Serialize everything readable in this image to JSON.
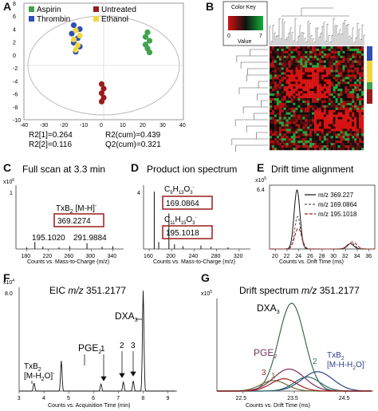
{
  "panels": {
    "A": {
      "label": "A",
      "legend": [
        {
          "name": "Aspirin",
          "color": "#3fa34d"
        },
        {
          "name": "Untreated",
          "color": "#9b1c1c"
        },
        {
          "name": "Thrombin",
          "color": "#2f4fb5"
        },
        {
          "name": "Ethanol",
          "color": "#f2d640"
        }
      ],
      "x_ticks": [
        "-40",
        "-30",
        "-20",
        "-10",
        "0",
        "10",
        "20",
        "30",
        "40"
      ],
      "y_ticks": [
        "8",
        "6",
        "4",
        "2",
        "0",
        "-2",
        "-4",
        "-6",
        "-8",
        "-10"
      ],
      "stats": [
        "R2[1]=0.264",
        "R2(cum)=0.439",
        "R2[2]=0.116",
        "Q2(cum)=0.321"
      ]
    },
    "B": {
      "label": "B",
      "key_title": "Color Key",
      "key_min": "0",
      "key_max": "7",
      "key_value": "Value"
    },
    "C": {
      "label": "C",
      "title": "Full scan at 3.3 min",
      "y_exp": "x10",
      "y_exp_sup": "6",
      "y_tick": "1",
      "peak_label": "TxB",
      "peak_label_sub": "2",
      "peak_label_suffix": " [M-H]",
      "peak_label_sup": "-",
      "boxed_value": "369.2274",
      "peaks": [
        "195.1020",
        "291.9884"
      ],
      "x_ticks": [
        "180",
        "220",
        "260",
        "300",
        "340"
      ],
      "xlabel": "Counts vs. Mass-to-Charge (m/z)"
    },
    "D": {
      "label": "D",
      "title": "Product ion spectrum",
      "y_tick": "4",
      "ion1": "C",
      "ion1_sub1": "9",
      "ion1_mid": "H",
      "ion1_sub2": "13",
      "ion1_end": "O",
      "ion1_sub3": "3",
      "ion1_sup": "-",
      "boxed1": "169.0864",
      "ion2": "C",
      "ion2_sub1": "11",
      "ion2_mid": "H",
      "ion2_sub2": "15",
      "ion2_end": "O",
      "ion2_sub3": "3",
      "ion2_sup": "-",
      "boxed2": "195.1018",
      "x_ticks": [
        "160",
        "200",
        "240",
        "280",
        "320"
      ],
      "xlabel": "Counts vs. Mass-to-Charge (m/z)"
    },
    "E": {
      "label": "E",
      "title": "Drift time alignment",
      "y_exp": "x10",
      "y_exp_sup": "5",
      "y_tick": "6.4",
      "legend": [
        {
          "name": "m/z  369.227",
          "color": "#111111",
          "dash": ""
        },
        {
          "name": "m/z  169.0864",
          "color": "#555555",
          "dash": "3,2"
        },
        {
          "name": "m/z  195.1018",
          "color": "#9b1c1c",
          "dash": "4,2"
        }
      ],
      "x_ticks": [
        "20",
        "22",
        "24",
        "26",
        "28",
        "30",
        "32",
        "34",
        "36"
      ],
      "xlabel": "Counts vs. Drift Time (ms)"
    },
    "F": {
      "label": "F",
      "title_prefix": "EIC ",
      "title_mz": "m/z",
      "title_value": " 351.2177",
      "y_exp": "x10",
      "y_exp_sup": "4",
      "y_tick": "8.0",
      "dxa": "DXA",
      "dxa_sub": "3",
      "pge": "PGE",
      "pge_sub": "2",
      "txb_line1": "TxB",
      "txb_sub": "2",
      "txb_line2": "[M-H",
      "txb_line2_sub": "2",
      "txb_line2_end": "O]",
      "txb_line2_sup": "-",
      "peak_nums": [
        "1",
        "2",
        "3"
      ],
      "x_ticks": [
        "3",
        "4",
        "5",
        "6",
        "7",
        "8",
        "9"
      ],
      "xlabel": "Counts vs. Acquisition Time (min)"
    },
    "G": {
      "label": "G",
      "title": "Drift spectrum ",
      "title_mz": "m/z",
      "title_value": " 351.2177",
      "y_exp": "x10",
      "y_exp_sup": "5",
      "dxa": "DXA",
      "dxa_sub": "3",
      "pge": "PGE",
      "pge_sub": "2",
      "txb_line1": "TxB",
      "txb_sub": "2",
      "txb_line2": "[M-H-H",
      "txb_line2_sub": "2",
      "txb_line2_end": "O]",
      "txb_line2_sup": "-",
      "peak_nums": [
        "1",
        "2",
        "3"
      ],
      "x_ticks": [
        "22.5",
        "23.5",
        "24.5"
      ],
      "xlabel": "Counts vs. Drift Time (ms)"
    }
  },
  "chart_data": [
    {
      "type": "scatter",
      "panel": "A",
      "xlim": [
        -40,
        40
      ],
      "ylim": [
        -10,
        8
      ],
      "series": [
        {
          "name": "Aspirin",
          "color": "#3fa34d",
          "points": [
            [
              22,
              3.5
            ],
            [
              21,
              2.8
            ],
            [
              23,
              2.2
            ],
            [
              21,
              1.6
            ],
            [
              22,
              1.0
            ],
            [
              23,
              0.4
            ]
          ]
        },
        {
          "name": "Thrombin",
          "color": "#2f4fb5",
          "points": [
            [
              -15,
              4.6
            ],
            [
              -12,
              4.0
            ],
            [
              -16,
              3.3
            ],
            [
              -13,
              2.6
            ],
            [
              -15,
              1.9
            ],
            [
              -12,
              1.3
            ],
            [
              -14,
              0.5
            ]
          ]
        },
        {
          "name": "Ethanol",
          "color": "#f2d640",
          "points": [
            [
              -14,
              3.8
            ],
            [
              -12,
              3.0
            ],
            [
              -15,
              2.4
            ],
            [
              -13,
              1.5
            ],
            [
              -14,
              0.8
            ]
          ]
        },
        {
          "name": "Untreated",
          "color": "#9b1c1c",
          "points": [
            [
              -1,
              -4.5
            ],
            [
              0,
              -5.2
            ],
            [
              -1,
              -5.9
            ],
            [
              0,
              -6.6
            ],
            [
              -1,
              -7.2
            ]
          ]
        }
      ]
    },
    {
      "type": "bar",
      "panel": "C",
      "xlim": [
        160,
        360
      ],
      "sticks": [
        [
          195.102,
          0.12
        ],
        [
          291.9884,
          0.1
        ],
        [
          369.2274,
          1.0
        ],
        [
          180,
          0.03
        ],
        [
          210,
          0.04
        ],
        [
          240,
          0.03
        ],
        [
          260,
          0.05
        ],
        [
          320,
          0.04
        ],
        [
          340,
          0.05
        ]
      ]
    },
    {
      "type": "bar",
      "panel": "D",
      "xlim": [
        150,
        340
      ],
      "sticks": [
        [
          169.0864,
          1.0
        ],
        [
          195.1018,
          0.62
        ],
        [
          177,
          0.12
        ],
        [
          205,
          0.08
        ],
        [
          220,
          0.05
        ],
        [
          252,
          0.06
        ],
        [
          270,
          0.04
        ],
        [
          300,
          0.03
        ]
      ]
    },
    {
      "type": "line",
      "panel": "E",
      "xlim": [
        19,
        37
      ],
      "series": [
        {
          "name": "m/z  369.227",
          "color": "#111111",
          "peaks": [
            [
              23.7,
              1.0,
              0.5
            ],
            [
              32.8,
              0.09,
              0.6
            ]
          ]
        },
        {
          "name": "m/z  169.0864",
          "color": "#555555",
          "peaks": [
            [
              23.8,
              0.55,
              0.5
            ],
            [
              33.0,
              0.1,
              0.6
            ]
          ]
        },
        {
          "name": "m/z  195.1018",
          "color": "#9b1c1c",
          "peaks": [
            [
              23.9,
              0.35,
              0.6
            ],
            [
              33.2,
              0.12,
              0.7
            ]
          ]
        }
      ]
    },
    {
      "type": "line",
      "panel": "F",
      "xlim": [
        3,
        9.3
      ],
      "peaks": [
        [
          3.6,
          0.08,
          0.03
        ],
        [
          4.7,
          0.3,
          0.03
        ],
        [
          6.3,
          0.07,
          0.03
        ],
        [
          7.2,
          0.09,
          0.03
        ],
        [
          7.6,
          0.1,
          0.03
        ],
        [
          8.0,
          1.0,
          0.03
        ]
      ]
    },
    {
      "type": "line",
      "panel": "G",
      "xlim": [
        22,
        25
      ],
      "series": [
        {
          "name": "DXA3",
          "color": "#3d6b4a",
          "peaks": [
            [
              23.45,
              1.0,
              0.25
            ]
          ]
        },
        {
          "name": "PGE2",
          "color": "#7a2f5c",
          "peaks": [
            [
              23.4,
              0.25,
              0.3
            ]
          ]
        },
        {
          "name": "TxB2",
          "color": "#2f3f8a",
          "peaks": [
            [
              23.95,
              0.22,
              0.3
            ]
          ]
        },
        {
          "name": "1",
          "color": "#6b6b2a",
          "peaks": [
            [
              23.1,
              0.12,
              0.25
            ]
          ]
        },
        {
          "name": "2",
          "color": "#2a6b6b",
          "peaks": [
            [
              23.75,
              0.16,
              0.25
            ]
          ]
        },
        {
          "name": "3",
          "color": "#9b1c1c",
          "peaks": [
            [
              23.3,
              0.14,
              0.25
            ]
          ]
        }
      ]
    }
  ]
}
